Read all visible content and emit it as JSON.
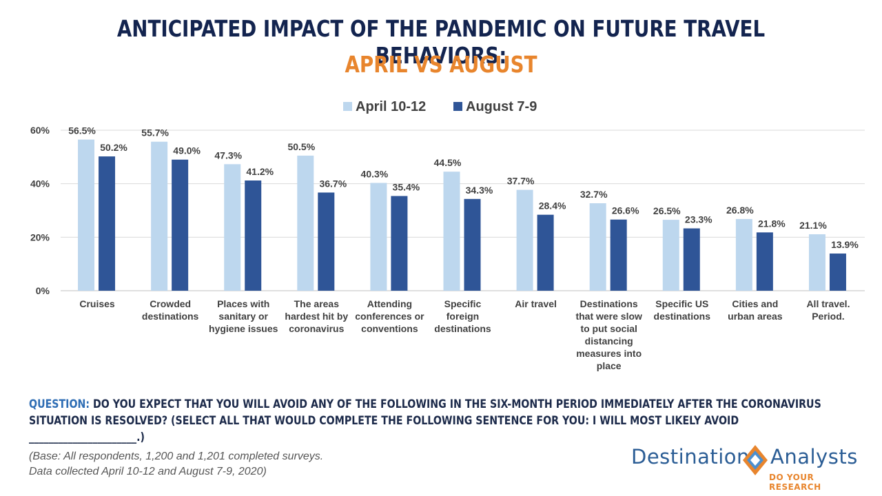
{
  "header": {
    "title": "ANTICIPATED IMPACT OF THE PANDEMIC ON FUTURE TRAVEL BEHAVIORS:",
    "subtitle": "APRIL VS AUGUST"
  },
  "chart_data": {
    "type": "bar",
    "categories": [
      [
        "Cruises"
      ],
      [
        "Crowded",
        "destinations"
      ],
      [
        "Places with",
        "sanitary or",
        "hygiene issues"
      ],
      [
        "The areas",
        "hardest hit by",
        "coronavirus"
      ],
      [
        "Attending",
        "conferences or",
        "conventions"
      ],
      [
        "Specific",
        "foreign",
        "destinations"
      ],
      [
        "Air travel"
      ],
      [
        "Destinations",
        "that were slow",
        "to put social",
        "distancing",
        "measures into",
        "place"
      ],
      [
        "Specific US",
        "destinations"
      ],
      [
        "Cities and",
        "urban areas"
      ],
      [
        "All travel.",
        "Period."
      ]
    ],
    "series": [
      {
        "name": "April 10-12",
        "color": "#bdd7ee",
        "values": [
          56.5,
          55.7,
          47.3,
          50.5,
          40.3,
          44.5,
          37.7,
          32.7,
          26.5,
          26.8,
          21.1
        ],
        "labels": [
          "56.5%",
          "55.7%",
          "47.3%",
          "50.5%",
          "40.3%",
          "44.5%",
          "37.7%",
          "32.7%",
          "26.5%",
          "26.8%",
          "21.1%"
        ]
      },
      {
        "name": "August 7-9",
        "color": "#2f5597",
        "values": [
          50.2,
          49.0,
          41.2,
          36.7,
          35.4,
          34.3,
          28.4,
          26.6,
          23.3,
          21.8,
          13.9
        ],
        "labels": [
          "50.2%",
          "49.0%",
          "41.2%",
          "36.7%",
          "35.4%",
          "34.3%",
          "28.4%",
          "26.6%",
          "23.3%",
          "21.8%",
          "13.9%"
        ]
      }
    ],
    "ylim": [
      0,
      60
    ],
    "yticks": [
      0,
      20,
      40,
      60
    ],
    "ytick_labels": [
      "0%",
      "20%",
      "40%",
      "60%"
    ],
    "grid": true,
    "legend": "top-center"
  },
  "question": {
    "label": "QUESTION:",
    "text": "DO YOU EXPECT THAT YOU WILL AVOID ANY OF THE FOLLOWING IN THE SIX-MONTH PERIOD IMMEDIATELY AFTER THE CORONAVIRUS SITUATION IS RESOLVED? (SELECT ALL THAT WOULD COMPLETE THE FOLLOWING SENTENCE  FOR YOU: I WILL MOST LIKELY AVOID ______________________.)"
  },
  "base": {
    "line1": "(Base: All respondents, 1,200 and 1,201 completed surveys.",
    "line2": "Data collected  April 10-12 and August 7-9, 2020)"
  },
  "logo": {
    "left": "Destination",
    "right": "Analysts",
    "tagline": "DO YOUR RESEARCH",
    "colors": {
      "blue": "#2b5d95",
      "orange": "#e8852d",
      "light_blue": "#4a8fd0"
    }
  }
}
